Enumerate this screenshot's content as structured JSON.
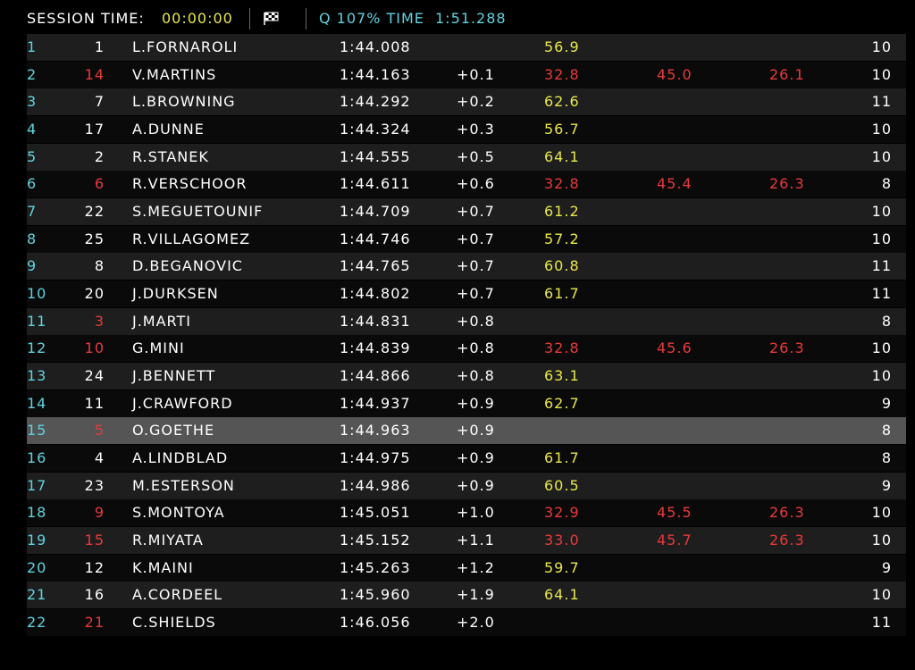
{
  "header": {
    "session_label": "SESSION TIME:",
    "session_time": "00:00:00",
    "q_label": "Q 107% TIME",
    "q_time": "1:51.288"
  },
  "table": {
    "rows": [
      {
        "pos": "1",
        "car": "1",
        "driver": "L.FORNAROLI",
        "time": "1:44.008",
        "s1": "56.9",
        "s1_color": "yellow",
        "laps": "10"
      },
      {
        "pos": "2",
        "car": "14",
        "car_color": "red",
        "driver": "V.MARTINS",
        "time": "1:44.163",
        "gap": "+0.1",
        "s1": "32.8",
        "s1_color": "red",
        "s2": "45.0",
        "s3": "26.1",
        "laps": "10"
      },
      {
        "pos": "3",
        "car": "7",
        "driver": "L.BROWNING",
        "time": "1:44.292",
        "gap": "+0.2",
        "s1": "62.6",
        "s1_color": "yellow",
        "laps": "11"
      },
      {
        "pos": "4",
        "car": "17",
        "driver": "A.DUNNE",
        "time": "1:44.324",
        "gap": "+0.3",
        "s1": "56.7",
        "s1_color": "yellow",
        "laps": "10"
      },
      {
        "pos": "5",
        "car": "2",
        "driver": "R.STANEK",
        "time": "1:44.555",
        "gap": "+0.5",
        "s1": "64.1",
        "s1_color": "yellow",
        "laps": "10"
      },
      {
        "pos": "6",
        "car": "6",
        "car_color": "red",
        "driver": "R.VERSCHOOR",
        "time": "1:44.611",
        "gap": "+0.6",
        "s1": "32.8",
        "s1_color": "red",
        "s2": "45.4",
        "s3": "26.3",
        "laps": "8"
      },
      {
        "pos": "7",
        "car": "22",
        "driver": "S.MEGUETOUNIF",
        "time": "1:44.709",
        "gap": "+0.7",
        "s1": "61.2",
        "s1_color": "yellow",
        "laps": "10"
      },
      {
        "pos": "8",
        "car": "25",
        "driver": "R.VILLAGOMEZ",
        "time": "1:44.746",
        "gap": "+0.7",
        "s1": "57.2",
        "s1_color": "yellow",
        "laps": "10"
      },
      {
        "pos": "9",
        "car": "8",
        "driver": "D.BEGANOVIC",
        "time": "1:44.765",
        "gap": "+0.7",
        "s1": "60.8",
        "s1_color": "yellow",
        "laps": "11"
      },
      {
        "pos": "10",
        "car": "20",
        "driver": "J.DURKSEN",
        "time": "1:44.802",
        "gap": "+0.7",
        "s1": "61.7",
        "s1_color": "yellow",
        "laps": "11"
      },
      {
        "pos": "11",
        "car": "3",
        "car_color": "red",
        "driver": "J.MARTI",
        "time": "1:44.831",
        "gap": "+0.8",
        "laps": "8"
      },
      {
        "pos": "12",
        "car": "10",
        "car_color": "red",
        "driver": "G.MINI",
        "time": "1:44.839",
        "gap": "+0.8",
        "s1": "32.8",
        "s1_color": "red",
        "s2": "45.6",
        "s3": "26.3",
        "laps": "10"
      },
      {
        "pos": "13",
        "car": "24",
        "driver": "J.BENNETT",
        "time": "1:44.866",
        "gap": "+0.8",
        "s1": "63.1",
        "s1_color": "yellow",
        "laps": "10"
      },
      {
        "pos": "14",
        "car": "11",
        "driver": "J.CRAWFORD",
        "time": "1:44.937",
        "gap": "+0.9",
        "s1": "62.7",
        "s1_color": "yellow",
        "laps": "9"
      },
      {
        "pos": "15",
        "car": "5",
        "car_color": "red",
        "driver": "O.GOETHE",
        "time": "1:44.963",
        "gap": "+0.9",
        "laps": "8",
        "selected": true
      },
      {
        "pos": "16",
        "car": "4",
        "driver": "A.LINDBLAD",
        "time": "1:44.975",
        "gap": "+0.9",
        "s1": "61.7",
        "s1_color": "yellow",
        "laps": "8"
      },
      {
        "pos": "17",
        "car": "23",
        "driver": "M.ESTERSON",
        "time": "1:44.986",
        "gap": "+0.9",
        "s1": "60.5",
        "s1_color": "yellow",
        "laps": "9"
      },
      {
        "pos": "18",
        "car": "9",
        "car_color": "red",
        "driver": "S.MONTOYA",
        "time": "1:45.051",
        "gap": "+1.0",
        "s1": "32.9",
        "s1_color": "red",
        "s2": "45.5",
        "s3": "26.3",
        "laps": "10"
      },
      {
        "pos": "19",
        "car": "15",
        "car_color": "red",
        "driver": "R.MIYATA",
        "time": "1:45.152",
        "gap": "+1.1",
        "s1": "33.0",
        "s1_color": "red",
        "s2": "45.7",
        "s3": "26.3",
        "laps": "10"
      },
      {
        "pos": "20",
        "car": "12",
        "driver": "K.MAINI",
        "time": "1:45.263",
        "gap": "+1.2",
        "s1": "59.7",
        "s1_color": "yellow",
        "laps": "9"
      },
      {
        "pos": "21",
        "car": "16",
        "driver": "A.CORDEEL",
        "time": "1:45.960",
        "gap": "+1.9",
        "s1": "64.1",
        "s1_color": "yellow",
        "laps": "10"
      },
      {
        "pos": "22",
        "car": "21",
        "car_color": "red",
        "driver": "C.SHIELDS",
        "time": "1:46.056",
        "gap": "+2.0",
        "laps": "11"
      }
    ]
  }
}
